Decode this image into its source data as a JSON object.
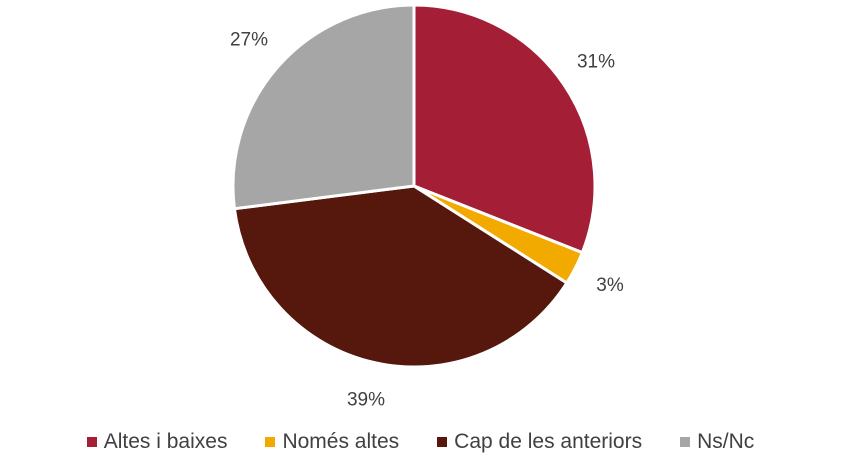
{
  "chart_data": {
    "type": "pie",
    "categories": [
      "Altes i baixes",
      "Només altes",
      "Cap de les anteriors",
      "Ns/Nc"
    ],
    "values": [
      31,
      3,
      39,
      27
    ],
    "value_labels": [
      "31%",
      "3%",
      "39%",
      "27%"
    ],
    "colors": [
      "#a41f35",
      "#f2a900",
      "#56170d",
      "#a6a6a6"
    ],
    "legend": "bottom"
  }
}
